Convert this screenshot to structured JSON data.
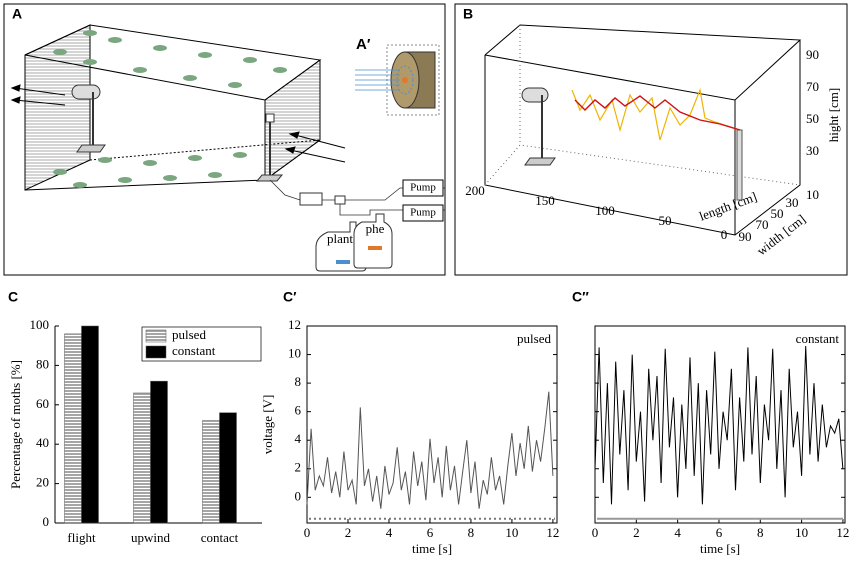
{
  "panel_a": {
    "panel": "A",
    "inset": "A′",
    "pumps": [
      "Pump",
      "Pump"
    ],
    "bottles": [
      "plant",
      "phe"
    ]
  },
  "panel_b": {
    "panel": "B",
    "length_label": "length [cm]",
    "length_ticks": [
      "200",
      "150",
      "100",
      "50",
      "0"
    ],
    "width_label": "width [cm]",
    "width_ticks": [
      "90",
      "70",
      "50",
      "30"
    ],
    "height_label": "hight [cm]",
    "height_ticks": [
      "90",
      "70",
      "50",
      "30",
      "10"
    ]
  },
  "chart_data": [
    {
      "type": "bar",
      "panel": "C",
      "ylabel": "Percentage of moths [%]",
      "categories": [
        "flight",
        "upwind",
        "contact"
      ],
      "series": [
        {
          "name": "pulsed",
          "color": "#a6a6a6",
          "striped": true,
          "values": [
            96,
            66,
            52
          ]
        },
        {
          "name": "constant",
          "color": "#000000",
          "values": [
            100,
            72,
            56
          ]
        }
      ],
      "ylim": [
        0,
        100
      ],
      "yticks": [
        0,
        20,
        40,
        60,
        80,
        100
      ],
      "legend": "upper right"
    },
    {
      "type": "line",
      "panel": "C′",
      "annotation": "pulsed",
      "xlabel": "time [s]",
      "ylabel": "voltage [V]",
      "color": "#555555",
      "x": [
        0,
        0.2,
        0.4,
        0.6,
        0.8,
        1,
        1.2,
        1.4,
        1.6,
        1.8,
        2,
        2.2,
        2.4,
        2.6,
        2.8,
        3,
        3.2,
        3.4,
        3.6,
        3.8,
        4,
        4.2,
        4.4,
        4.6,
        4.8,
        5,
        5.2,
        5.4,
        5.6,
        5.8,
        6,
        6.2,
        6.4,
        6.6,
        6.8,
        7,
        7.2,
        7.4,
        7.6,
        7.8,
        8,
        8.2,
        8.4,
        8.6,
        8.8,
        9,
        9.2,
        9.4,
        9.6,
        9.8,
        10,
        10.2,
        10.4,
        10.6,
        10.8,
        11,
        11.2,
        11.4,
        11.6,
        11.8,
        12
      ],
      "values": [
        -0.5,
        4.8,
        0.5,
        1.5,
        0.8,
        2.8,
        0.3,
        1.8,
        0,
        3.2,
        0.5,
        1.2,
        -0.5,
        6.3,
        0.8,
        2,
        -0.3,
        1.5,
        -0.8,
        2.2,
        0.2,
        1,
        3.5,
        0.5,
        1.8,
        -0.5,
        3.2,
        0.8,
        2.5,
        -0.2,
        4.1,
        1,
        2.8,
        0,
        3.6,
        0.5,
        2.2,
        -0.5,
        1.8,
        4,
        0.3,
        2.5,
        -0.8,
        1.2,
        0.2,
        2.8,
        0.5,
        1.5,
        -0.5,
        2.2,
        4.5,
        1.5,
        3.8,
        2,
        5,
        1.8,
        4,
        2.5,
        4.8,
        7.4,
        1.5
      ],
      "stimulus": {
        "value": -1.5,
        "style": "dotted",
        "color": "#777777"
      },
      "xlim": [
        0,
        12.2
      ],
      "xticks": [
        0,
        2,
        4,
        6,
        8,
        10,
        12
      ],
      "ylim": [
        -1.8,
        12
      ],
      "yticks": [
        0,
        2,
        4,
        6,
        8,
        10,
        12
      ],
      "ytick_labels": true
    },
    {
      "type": "line",
      "panel": "C″",
      "annotation": "constant",
      "xlabel": "time [s]",
      "color": "#000000",
      "x": [
        0,
        0.2,
        0.4,
        0.6,
        0.8,
        1,
        1.2,
        1.4,
        1.6,
        1.8,
        2,
        2.2,
        2.4,
        2.6,
        2.8,
        3,
        3.2,
        3.4,
        3.6,
        3.8,
        4,
        4.2,
        4.4,
        4.6,
        4.8,
        5,
        5.2,
        5.4,
        5.6,
        5.8,
        6,
        6.2,
        6.4,
        6.6,
        6.8,
        7,
        7.2,
        7.4,
        7.6,
        7.8,
        8,
        8.2,
        8.4,
        8.6,
        8.8,
        9,
        9.2,
        9.4,
        9.6,
        9.8,
        10,
        10.2,
        10.4,
        10.6,
        10.8,
        11,
        11.2,
        11.4,
        11.6,
        11.8,
        12
      ],
      "values": [
        2,
        10.5,
        1,
        8,
        -0.5,
        9.5,
        3,
        7.5,
        0.5,
        10,
        2.5,
        6,
        -0.3,
        9,
        4,
        8.5,
        1,
        10.4,
        3.5,
        7,
        0,
        6.5,
        2,
        9.8,
        1.5,
        8,
        -0.5,
        7.5,
        3,
        10.2,
        2,
        6,
        4,
        9,
        0.5,
        7,
        2.5,
        10.5,
        3,
        8.5,
        1,
        6.5,
        4,
        10.4,
        2,
        7.5,
        0,
        9,
        3.5,
        6,
        1.5,
        10.6,
        3,
        8,
        2.5,
        6.5,
        3.5,
        5,
        4.5,
        5.5,
        2
      ],
      "stimulus": {
        "value": -1.5,
        "style": "solid",
        "color": "#999999"
      },
      "xlim": [
        0,
        12.1
      ],
      "xticks": [
        0,
        2,
        4,
        6,
        8,
        10,
        12
      ],
      "ylim": [
        -1.8,
        12
      ],
      "yticks": [
        0,
        2,
        4,
        6,
        8,
        10,
        12
      ],
      "ytick_labels": false
    }
  ]
}
